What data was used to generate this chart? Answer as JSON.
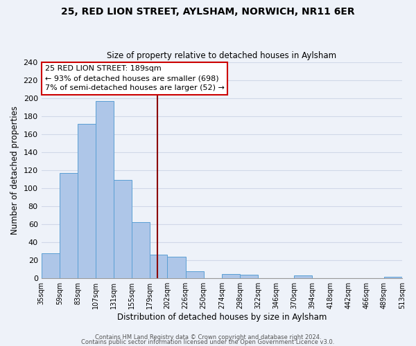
{
  "title": "25, RED LION STREET, AYLSHAM, NORWICH, NR11 6ER",
  "subtitle": "Size of property relative to detached houses in Aylsham",
  "xlabel": "Distribution of detached houses by size in Aylsham",
  "ylabel": "Number of detached properties",
  "bar_color": "#aec6e8",
  "bar_edge_color": "#5a9fd4",
  "bin_edges": [
    35,
    59,
    83,
    107,
    131,
    155,
    179,
    202,
    226,
    250,
    274,
    298,
    322,
    346,
    370,
    394,
    418,
    442,
    466,
    489,
    513
  ],
  "bar_heights": [
    28,
    117,
    171,
    197,
    109,
    62,
    26,
    24,
    8,
    0,
    5,
    4,
    0,
    0,
    3,
    0,
    0,
    0,
    0,
    2
  ],
  "tick_labels": [
    "35sqm",
    "59sqm",
    "83sqm",
    "107sqm",
    "131sqm",
    "155sqm",
    "179sqm",
    "202sqm",
    "226sqm",
    "250sqm",
    "274sqm",
    "298sqm",
    "322sqm",
    "346sqm",
    "370sqm",
    "394sqm",
    "418sqm",
    "442sqm",
    "466sqm",
    "489sqm",
    "513sqm"
  ],
  "ylim": [
    0,
    240
  ],
  "yticks": [
    0,
    20,
    40,
    60,
    80,
    100,
    120,
    140,
    160,
    180,
    200,
    220,
    240
  ],
  "property_size": 189,
  "vline_color": "#8b0000",
  "annotation_title": "25 RED LION STREET: 189sqm",
  "annotation_line1": "← 93% of detached houses are smaller (698)",
  "annotation_line2": "7% of semi-detached houses are larger (52) →",
  "annotation_box_color": "#ffffff",
  "annotation_box_edge": "#cc0000",
  "footer1": "Contains HM Land Registry data © Crown copyright and database right 2024.",
  "footer2": "Contains public sector information licensed under the Open Government Licence v3.0.",
  "background_color": "#eef2f9",
  "grid_color": "#d0d8e8"
}
